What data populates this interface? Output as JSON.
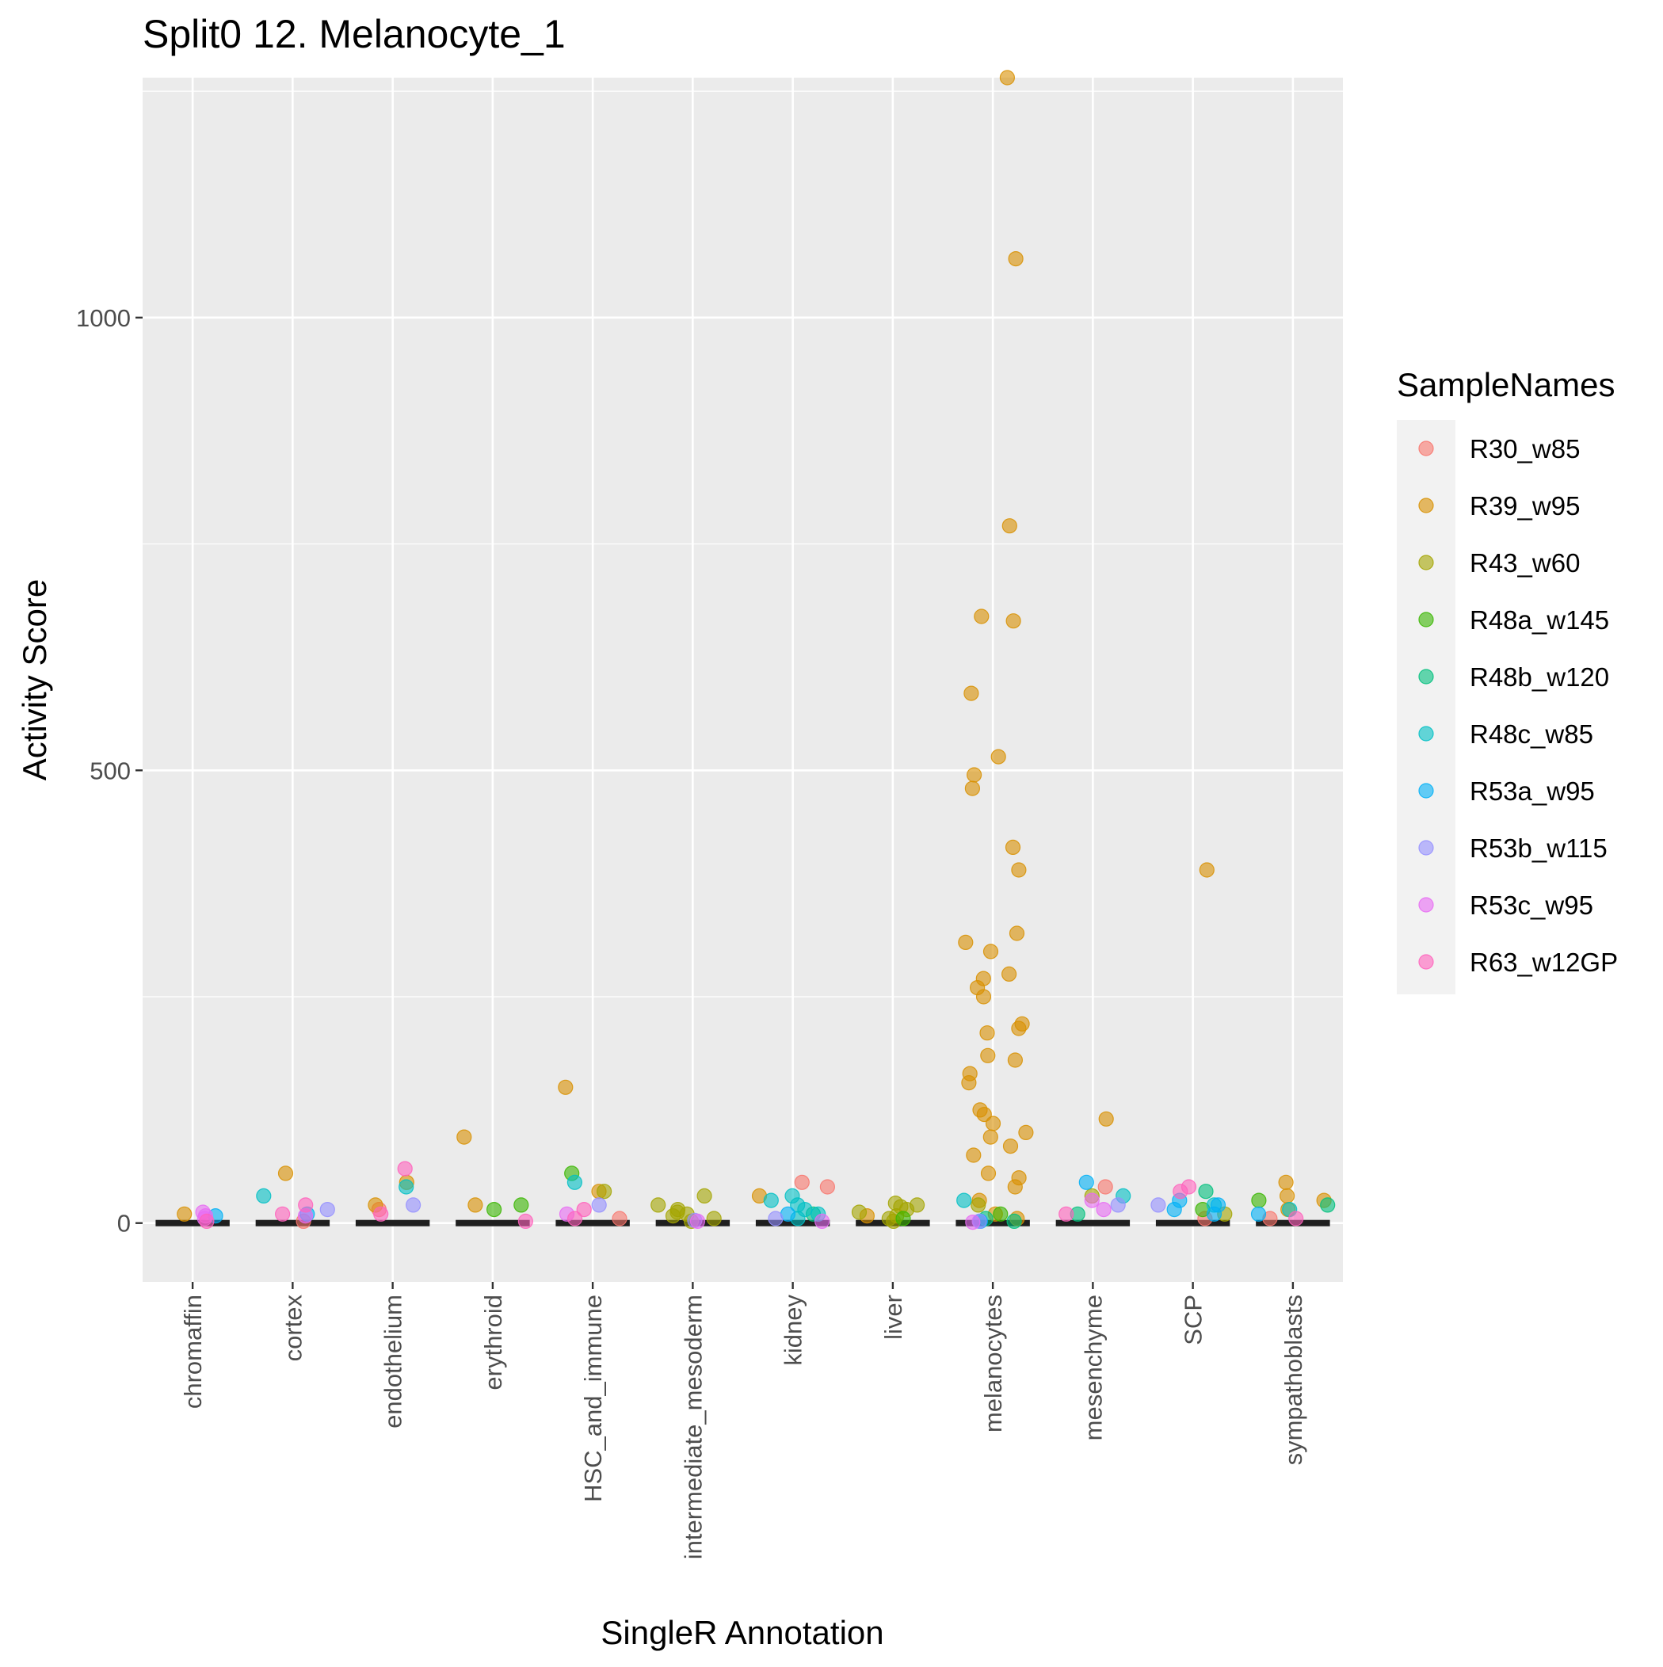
{
  "chart_data": {
    "type": "scatter",
    "title": "Split0 12. Melanocyte_1",
    "xlabel": "SingleR Annotation",
    "ylabel": "Activity Score",
    "ylim": [
      -65,
      1265
    ],
    "y_ticks": [
      0,
      500,
      1000
    ],
    "y_tick_labels": [
      "0",
      "500",
      "1000"
    ],
    "grid": true,
    "legend_title": "SampleNames",
    "legend_position": "right",
    "categories": [
      "chromaffin",
      "cortex",
      "endothelium",
      "erythroid",
      "HSC_and_immune",
      "intermediate_mesoderm",
      "kidney",
      "liver",
      "melanocytes",
      "mesenchyme",
      "SCP",
      "sympathoblasts"
    ],
    "series": [
      {
        "name": "R30_w85",
        "color": "#F8766D",
        "points": [
          [
            "cortex",
            2
          ],
          [
            "endothelium",
            15
          ],
          [
            "kidney",
            45
          ],
          [
            "kidney",
            40
          ],
          [
            "mesenchyme",
            40
          ],
          [
            "SCP",
            5
          ],
          [
            "sympathoblasts",
            5
          ],
          [
            "HSC_and_immune",
            5
          ]
        ]
      },
      {
        "name": "R39_w95",
        "color": "#D89000",
        "points": [
          [
            "melanocytes",
            1265
          ],
          [
            "melanocytes",
            1065
          ],
          [
            "melanocytes",
            770
          ],
          [
            "melanocytes",
            670
          ],
          [
            "melanocytes",
            665
          ],
          [
            "melanocytes",
            585
          ],
          [
            "melanocytes",
            515
          ],
          [
            "melanocytes",
            495
          ],
          [
            "melanocytes",
            480
          ],
          [
            "melanocytes",
            415
          ],
          [
            "melanocytes",
            390
          ],
          [
            "melanocytes",
            320
          ],
          [
            "melanocytes",
            310
          ],
          [
            "melanocytes",
            300
          ],
          [
            "melanocytes",
            275
          ],
          [
            "melanocytes",
            270
          ],
          [
            "melanocytes",
            260
          ],
          [
            "melanocytes",
            250
          ],
          [
            "melanocytes",
            220
          ],
          [
            "melanocytes",
            215
          ],
          [
            "melanocytes",
            210
          ],
          [
            "melanocytes",
            185
          ],
          [
            "melanocytes",
            180
          ],
          [
            "melanocytes",
            165
          ],
          [
            "melanocytes",
            155
          ],
          [
            "melanocytes",
            125
          ],
          [
            "melanocytes",
            120
          ],
          [
            "melanocytes",
            110
          ],
          [
            "melanocytes",
            100
          ],
          [
            "melanocytes",
            95
          ],
          [
            "melanocytes",
            85
          ],
          [
            "melanocytes",
            75
          ],
          [
            "melanocytes",
            55
          ],
          [
            "melanocytes",
            50
          ],
          [
            "melanocytes",
            40
          ],
          [
            "melanocytes",
            25
          ],
          [
            "melanocytes",
            10
          ],
          [
            "melanocytes",
            5
          ],
          [
            "SCP",
            390
          ],
          [
            "HSC_and_immune",
            150
          ],
          [
            "HSC_and_immune",
            35
          ],
          [
            "erythroid",
            95
          ],
          [
            "mesenchyme",
            115
          ],
          [
            "cortex",
            55
          ],
          [
            "endothelium",
            45
          ],
          [
            "endothelium",
            20
          ],
          [
            "chromaffin",
            10
          ],
          [
            "sympathoblasts",
            45
          ],
          [
            "sympathoblasts",
            30
          ],
          [
            "sympathoblasts",
            25
          ],
          [
            "sympathoblasts",
            15
          ],
          [
            "kidney",
            30
          ],
          [
            "erythroid",
            20
          ],
          [
            "liver",
            8
          ]
        ]
      },
      {
        "name": "R43_w60",
        "color": "#A3A500",
        "points": [
          [
            "intermediate_mesoderm",
            30
          ],
          [
            "intermediate_mesoderm",
            20
          ],
          [
            "intermediate_mesoderm",
            15
          ],
          [
            "intermediate_mesoderm",
            12
          ],
          [
            "intermediate_mesoderm",
            10
          ],
          [
            "intermediate_mesoderm",
            8
          ],
          [
            "intermediate_mesoderm",
            5
          ],
          [
            "intermediate_mesoderm",
            2
          ],
          [
            "liver",
            22
          ],
          [
            "liver",
            20
          ],
          [
            "liver",
            18
          ],
          [
            "liver",
            15
          ],
          [
            "liver",
            12
          ],
          [
            "liver",
            8
          ],
          [
            "liver",
            5
          ],
          [
            "liver",
            2
          ],
          [
            "HSC_and_immune",
            35
          ],
          [
            "melanocytes",
            20
          ],
          [
            "mesenchyme",
            30
          ],
          [
            "SCP",
            10
          ]
        ]
      },
      {
        "name": "R48a_w145",
        "color": "#39B600",
        "points": [
          [
            "HSC_and_immune",
            55
          ],
          [
            "erythroid",
            15
          ],
          [
            "erythroid",
            20
          ],
          [
            "melanocytes",
            10
          ],
          [
            "sympathoblasts",
            25
          ],
          [
            "SCP",
            15
          ],
          [
            "liver",
            5
          ]
        ]
      },
      {
        "name": "R48b_w120",
        "color": "#00BF7D",
        "points": [
          [
            "melanocytes",
            5
          ],
          [
            "melanocytes",
            2
          ],
          [
            "SCP",
            35
          ],
          [
            "mesenchyme",
            10
          ],
          [
            "kidney",
            10
          ],
          [
            "sympathoblasts",
            20
          ]
        ]
      },
      {
        "name": "R48c_w85",
        "color": "#00BFC4",
        "points": [
          [
            "kidney",
            30
          ],
          [
            "kidney",
            25
          ],
          [
            "kidney",
            20
          ],
          [
            "kidney",
            15
          ],
          [
            "kidney",
            10
          ],
          [
            "kidney",
            5
          ],
          [
            "endothelium",
            40
          ],
          [
            "cortex",
            30
          ],
          [
            "mesenchyme",
            30
          ],
          [
            "melanocytes",
            25
          ],
          [
            "HSC_and_immune",
            45
          ],
          [
            "sympathoblasts",
            15
          ],
          [
            "SCP",
            20
          ]
        ]
      },
      {
        "name": "R53a_w95",
        "color": "#00B0F6",
        "points": [
          [
            "SCP",
            25
          ],
          [
            "SCP",
            20
          ],
          [
            "SCP",
            15
          ],
          [
            "SCP",
            10
          ],
          [
            "mesenchyme",
            45
          ],
          [
            "kidney",
            10
          ],
          [
            "sympathoblasts",
            10
          ],
          [
            "melanocytes",
            2
          ],
          [
            "cortex",
            10
          ],
          [
            "chromaffin",
            8
          ]
        ]
      },
      {
        "name": "R53b_w115",
        "color": "#9590FF",
        "points": [
          [
            "endothelium",
            20
          ],
          [
            "cortex",
            15
          ],
          [
            "HSC_and_immune",
            20
          ],
          [
            "mesenchyme",
            20
          ],
          [
            "melanocytes",
            2
          ],
          [
            "SCP",
            20
          ],
          [
            "kidney",
            5
          ],
          [
            "intermediate_mesoderm",
            3
          ]
        ]
      },
      {
        "name": "R53c_w95",
        "color": "#E76BF3",
        "points": [
          [
            "chromaffin",
            12
          ],
          [
            "chromaffin",
            8
          ],
          [
            "chromaffin",
            5
          ],
          [
            "mesenchyme",
            25
          ],
          [
            "mesenchyme",
            15
          ],
          [
            "kidney",
            2
          ],
          [
            "cortex",
            8
          ],
          [
            "HSC_and_immune",
            10
          ],
          [
            "intermediate_mesoderm",
            2
          ],
          [
            "melanocytes",
            1
          ]
        ]
      },
      {
        "name": "R63_w12GP",
        "color": "#FF62BC",
        "points": [
          [
            "endothelium",
            60
          ],
          [
            "SCP",
            40
          ],
          [
            "SCP",
            35
          ],
          [
            "cortex",
            20
          ],
          [
            "cortex",
            10
          ],
          [
            "HSC_and_immune",
            15
          ],
          [
            "HSC_and_immune",
            5
          ],
          [
            "endothelium",
            10
          ],
          [
            "mesenchyme",
            10
          ],
          [
            "sympathoblasts",
            5
          ],
          [
            "erythroid",
            2
          ],
          [
            "chromaffin",
            2
          ]
        ]
      }
    ]
  }
}
